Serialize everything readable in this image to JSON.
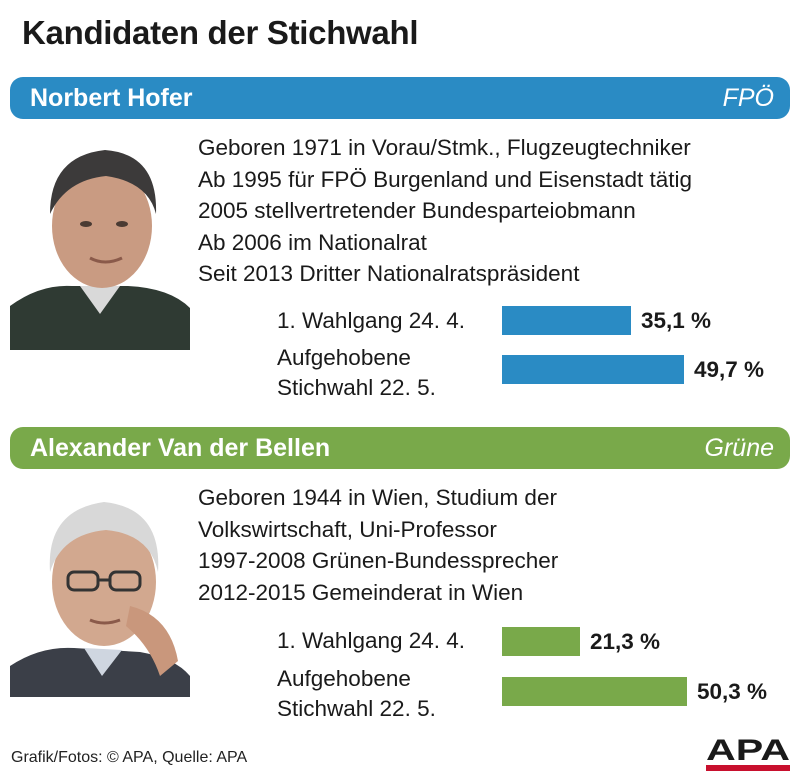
{
  "title": "Kandidaten der Stichwahl",
  "colors": {
    "hofer": "#2a8bc4",
    "vdb": "#79a94a",
    "text": "#1a1a1a",
    "logo_red": "#c8102e"
  },
  "chart_data": [
    {
      "type": "bar",
      "candidate": "Norbert Hofer",
      "party": "FPÖ",
      "categories": [
        "1. Wahlgang 24. 4.",
        "Aufgehobene Stichwahl 22. 5."
      ],
      "values": [
        35.1,
        49.7
      ],
      "value_labels": [
        "35,1 %",
        "49,7 %"
      ],
      "unit": "%"
    },
    {
      "type": "bar",
      "candidate": "Alexander Van der Bellen",
      "party": "Grüne",
      "categories": [
        "1. Wahlgang 24. 4.",
        "Aufgehobene Stichwahl 22. 5."
      ],
      "values": [
        21.3,
        50.3
      ],
      "value_labels": [
        "21,3 %",
        "50,3 %"
      ],
      "unit": "%"
    }
  ],
  "candidates": [
    {
      "name": "Norbert Hofer",
      "party": "FPÖ",
      "bio": [
        "Geboren 1971 in Vorau/Stmk., Flugzeugtechniker",
        "Ab 1995 für FPÖ Burgenland und Eisenstadt tätig",
        "2005 stellvertretender Bundesparteiobmann",
        "Ab 2006 im Nationalrat",
        "Seit 2013 Dritter Nationalratspräsident"
      ],
      "labels": [
        "1. Wahlgang 24. 4.",
        "Aufgehobene",
        "Stichwahl 22. 5."
      ]
    },
    {
      "name": "Alexander Van der Bellen",
      "party": "Grüne",
      "bio": [
        "Geboren 1944 in Wien, Studium der",
        "Volkswirtschaft, Uni-Professor",
        "1997-2008 Grünen-Bundessprecher",
        "2012-2015 Gemeinderat in Wien"
      ],
      "labels": [
        "1. Wahlgang 24. 4.",
        "Aufgehobene",
        "Stichwahl 22. 5."
      ]
    }
  ],
  "footer": "Grafik/Fotos: © APA, Quelle: APA",
  "logo_text": "APA"
}
